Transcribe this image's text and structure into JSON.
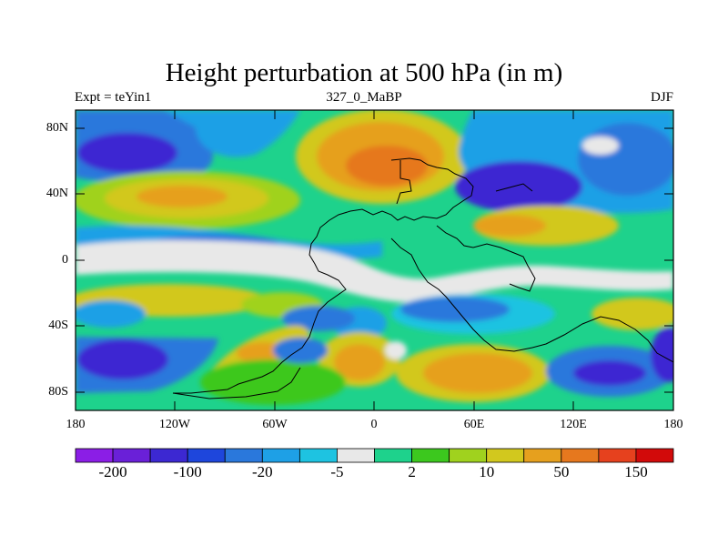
{
  "map": {
    "title": "Height perturbation at 500 hPa (in m)",
    "left_subtitle": "Expt = teYin1",
    "center_subtitle": "327_0_MaBP",
    "right_subtitle": "DJF",
    "lat_labels": [
      "80N",
      "40N",
      "0",
      "40S",
      "80S"
    ],
    "lon_labels": [
      "180",
      "120W",
      "60W",
      "0",
      "60E",
      "120E",
      "180"
    ],
    "variable": "500 hPa geopotential height perturbation",
    "units": "m"
  },
  "colorbar": {
    "colors": [
      "#8b1ee6",
      "#6a20d8",
      "#3c28d2",
      "#1e46dc",
      "#2a78dc",
      "#1ea0e6",
      "#1ec3e1",
      "#e8e8e8",
      "#1ed28c",
      "#3cc81e",
      "#a0d21e",
      "#d2c81e",
      "#e6a01e",
      "#e6781e",
      "#e6411e",
      "#d20a0a"
    ],
    "labels": [
      {
        "text": "-200",
        "boundary": 1
      },
      {
        "text": "-100",
        "boundary": 3
      },
      {
        "text": "-20",
        "boundary": 5
      },
      {
        "text": "-5",
        "boundary": 7
      },
      {
        "text": "2",
        "boundary": 9
      },
      {
        "text": "10",
        "boundary": 11
      },
      {
        "text": "50",
        "boundary": 13
      },
      {
        "text": "150",
        "boundary": 15
      }
    ]
  }
}
